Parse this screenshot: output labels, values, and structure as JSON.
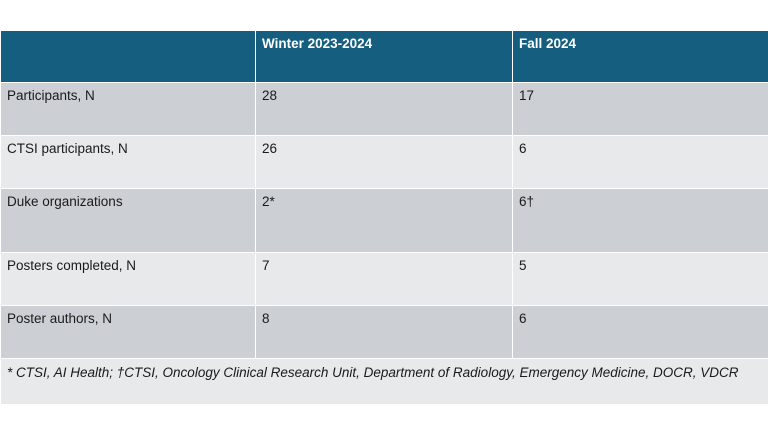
{
  "table": {
    "columns": [
      "",
      "Winter 2023-2024",
      "Fall 2024"
    ],
    "rows": [
      {
        "label": "Participants, N",
        "values": [
          "28",
          "17"
        ]
      },
      {
        "label": "CTSI participants, N",
        "values": [
          "26",
          "6"
        ]
      },
      {
        "label": "Duke organizations",
        "values": [
          "2*",
          "6†"
        ]
      },
      {
        "label": "Posters completed, N",
        "values": [
          "7",
          "5"
        ]
      },
      {
        "label": "Poster authors, N",
        "values": [
          "8",
          "6"
        ]
      }
    ],
    "footnote": "* CTSI, AI Health; †CTSI, Oncology Clinical Research Unit, Department of Radiology, Emergency Medicine, DOCR, VDCR"
  },
  "colors": {
    "header_bg": "#155e80",
    "header_text": "#ffffff",
    "row_dark": "#ccd0d5",
    "row_light": "#e7e9eb"
  }
}
